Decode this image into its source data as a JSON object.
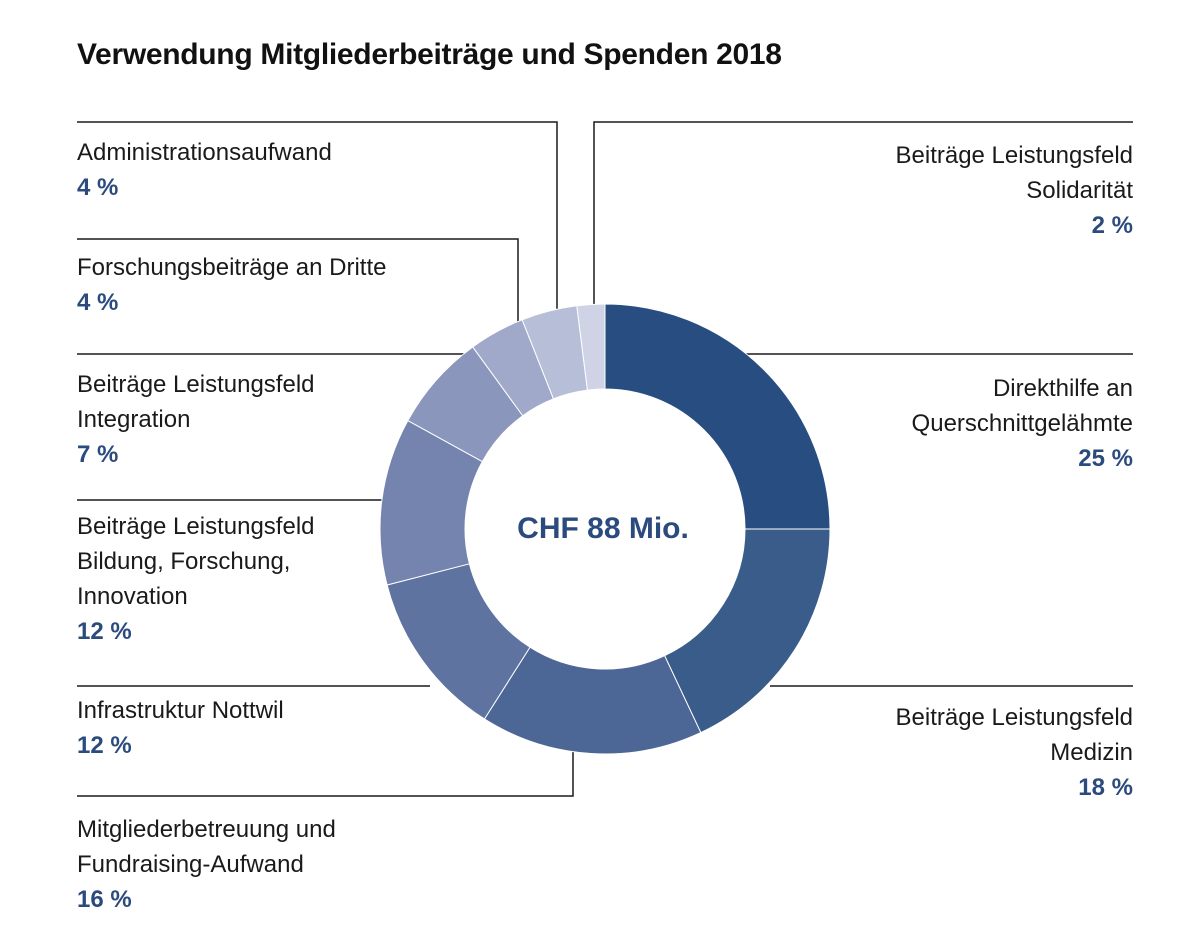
{
  "chart_data": {
    "type": "pie",
    "title": "Verwendung Mitgliederbeiträge und Spenden 2018",
    "center_label": "CHF 88 Mio.",
    "slices": [
      {
        "label": "Direkthilfe an Querschnittgelähmte",
        "value": 25,
        "pct_label": "25 %",
        "color": "#284d80"
      },
      {
        "label": "Beiträge Leistungsfeld Medizin",
        "value": 18,
        "pct_label": "18 %",
        "color": "#3a5c8a"
      },
      {
        "label": "Mitgliederbetreuung und Fundraising-Aufwand",
        "value": 16,
        "pct_label": "16 %",
        "color": "#4c6795"
      },
      {
        "label": "Infrastruktur Nottwil",
        "value": 12,
        "pct_label": "12 %",
        "color": "#5e73a0"
      },
      {
        "label": "Beiträge Leistungsfeld Bildung, Forschung, Innovation",
        "value": 12,
        "pct_label": "12 %",
        "color": "#7484ae"
      },
      {
        "label": "Beiträge Leistungsfeld Integration",
        "value": 7,
        "pct_label": "7 %",
        "color": "#8a96bb"
      },
      {
        "label": "Forschungsbeiträge an Dritte",
        "value": 4,
        "pct_label": "4 %",
        "color": "#a0a9c9"
      },
      {
        "label": "Administrationsaufwand",
        "value": 4,
        "pct_label": "4 %",
        "color": "#b7bed8"
      },
      {
        "label": "Beiträge Leistungsfeld Solidarität",
        "value": 2,
        "pct_label": "2 %",
        "color": "#cfd3e5"
      }
    ]
  },
  "labels": {
    "administration": {
      "lines": [
        "Administrationsaufwand"
      ],
      "pct": "4 %"
    },
    "forschung": {
      "lines": [
        "Forschungsbeiträge an Dritte"
      ],
      "pct": "4 %"
    },
    "integration": {
      "lines": [
        "Beiträge Leistungsfeld",
        "Integration"
      ],
      "pct": "7 %"
    },
    "bildung": {
      "lines": [
        "Beiträge Leistungsfeld",
        "Bildung, Forschung,",
        "Innovation"
      ],
      "pct": "12 %"
    },
    "infrastruktur": {
      "lines": [
        "Infrastruktur Nottwil"
      ],
      "pct": "12 %"
    },
    "mitglieder": {
      "lines": [
        "Mitgliederbetreuung und",
        "Fundraising-Aufwand"
      ],
      "pct": "16 %"
    },
    "solidaritaet": {
      "lines": [
        "Beiträge Leistungsfeld",
        "Solidarität"
      ],
      "pct": "2 %"
    },
    "direkthilfe": {
      "lines": [
        "Direkthilfe an",
        "Querschnittgelähmte"
      ],
      "pct": "25 %"
    },
    "medizin": {
      "lines": [
        "Beiträge Leistungsfeld",
        "Medizin"
      ],
      "pct": "18 %"
    }
  },
  "colors": {
    "accent": "#2b4b7e",
    "leader_line": "#1a1a1a"
  }
}
